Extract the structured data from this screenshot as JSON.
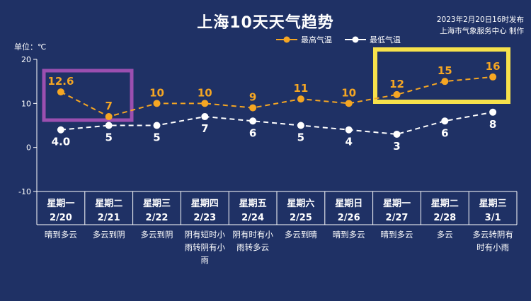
{
  "title": "上海10天天气趋势",
  "publish": {
    "line1": "2023年2月20日16时发布",
    "line2": "上海市气象服务中心 制作"
  },
  "unit_label": "单位：℃",
  "colors": {
    "background": "#1f3165",
    "high": "#f5a623",
    "low": "#ffffff",
    "purple_box": "#9b4fb0",
    "yellow_box": "#f7e14b",
    "grid": "#ffffff"
  },
  "chart_data": {
    "type": "line",
    "title": "上海10天天气趋势",
    "ylabel": "单位：℃",
    "ylim": [
      -10,
      20
    ],
    "yticks": [
      "20",
      "10",
      "0",
      "-10"
    ],
    "grid": false,
    "legend_position": "top",
    "days": [
      {
        "weekday": "星期一",
        "date": "2/20",
        "weather": [
          "晴到多云"
        ]
      },
      {
        "weekday": "星期二",
        "date": "2/21",
        "weather": [
          "多云到阴"
        ]
      },
      {
        "weekday": "星期三",
        "date": "2/22",
        "weather": [
          "多云到阴"
        ]
      },
      {
        "weekday": "星期四",
        "date": "2/23",
        "weather": [
          "阴有短时小",
          "雨转阴有小",
          "雨"
        ]
      },
      {
        "weekday": "星期五",
        "date": "2/24",
        "weather": [
          "阴有时有小",
          "雨转多云"
        ]
      },
      {
        "weekday": "星期六",
        "date": "2/25",
        "weather": [
          "多云到晴"
        ]
      },
      {
        "weekday": "星期日",
        "date": "2/26",
        "weather": [
          "晴到多云"
        ]
      },
      {
        "weekday": "星期一",
        "date": "2/27",
        "weather": [
          "晴到多云"
        ]
      },
      {
        "weekday": "星期二",
        "date": "2/28",
        "weather": [
          "多云"
        ]
      },
      {
        "weekday": "星期三",
        "date": "3/1",
        "weather": [
          "多云转阴有",
          "时有小雨"
        ]
      }
    ],
    "series": [
      {
        "name": "最高气温",
        "values": [
          12.6,
          7,
          10,
          10,
          9,
          11,
          10,
          12,
          15,
          16
        ],
        "labels": [
          "12.6",
          "7",
          "10",
          "10",
          "9",
          "11",
          "10",
          "12",
          "15",
          "16"
        ]
      },
      {
        "name": "最低气温",
        "values": [
          4.0,
          5,
          5,
          7,
          6,
          5,
          4,
          3,
          6,
          8
        ],
        "labels": [
          "4.0",
          "5",
          "5",
          "7",
          "6",
          "5",
          "4",
          "3",
          "6",
          "8"
        ]
      }
    ]
  }
}
